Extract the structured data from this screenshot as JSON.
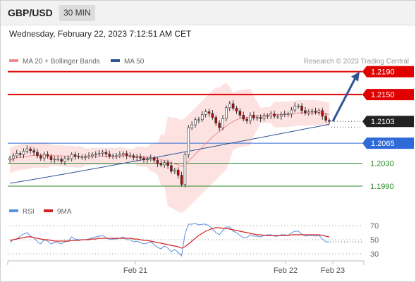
{
  "header": {
    "symbol": "GBP/USD",
    "timeframe": "30 MIN",
    "datetime": "Wednesday, February 22, 2023 7:12:51 AM CET"
  },
  "chart_data": [
    {
      "type": "candlestick",
      "legend": [
        {
          "label": "MA 20 + Bollinger Bands",
          "color": "#f08c8c"
        },
        {
          "label": "MA 50",
          "color": "#2f5597"
        }
      ],
      "legend_placement": "top-left",
      "credit": "Research © 2023 Trading Central",
      "x_ticks": [
        "Feb 21",
        "Feb 22",
        "Feb 23"
      ],
      "current_price": "1.2103",
      "levels": [
        {
          "label": "1.2190",
          "value": 1.219,
          "kind": "resistance",
          "color": "#e00000"
        },
        {
          "label": "1.2150",
          "value": 1.215,
          "kind": "resistance",
          "color": "#e00000"
        },
        {
          "label": "1.2065",
          "value": 1.2065,
          "kind": "pivot",
          "color": "#2f6bd8"
        },
        {
          "label": "1.2030",
          "value": 1.203,
          "kind": "support",
          "color": "#2a8a2a"
        },
        {
          "label": "1.1990",
          "value": 1.199,
          "kind": "support",
          "color": "#2a8a2a"
        }
      ],
      "colors": {
        "candle_up": "#ffffff",
        "candle_down": "#c00000",
        "bollinger_band": "#fde2e2",
        "ma20": "#f08c8c",
        "ma50": "#2f5597",
        "arrow": "#2f5597"
      },
      "price_range": [
        1.1985,
        1.2192
      ],
      "close": [
        1.2039,
        1.2043,
        1.2047,
        1.2045,
        1.2051,
        1.2055,
        1.2052,
        1.2049,
        1.2043,
        1.2039,
        1.2045,
        1.2042,
        1.2036,
        1.2037,
        1.2037,
        1.2033,
        1.2038,
        1.2038,
        1.2045,
        1.2042,
        1.2041,
        1.2041,
        1.2041,
        1.2043,
        1.2045,
        1.2046,
        1.2047,
        1.2049,
        1.2046,
        1.2042,
        1.2043,
        1.2043,
        1.2045,
        1.2047,
        1.2043,
        1.2043,
        1.204,
        1.2041,
        1.2039,
        1.2036,
        1.2037,
        1.2039,
        1.2035,
        1.2029,
        1.2027,
        1.2031,
        1.2026,
        1.2016,
        1.2018,
        1.2009,
        1.1993,
        1.2045,
        1.2092,
        1.2097,
        1.2106,
        1.2106,
        1.2115,
        1.212,
        1.2117,
        1.211,
        1.21,
        1.2092,
        1.2108,
        1.2127,
        1.2134,
        1.2126,
        1.2121,
        1.2114,
        1.2107,
        1.2104,
        1.2114,
        1.2109,
        1.211,
        1.2108,
        1.2112,
        1.2113,
        1.2116,
        1.2112,
        1.2112,
        1.2115,
        1.2116,
        1.2116,
        1.2123,
        1.213,
        1.213,
        1.2122,
        1.2118,
        1.212,
        1.2121,
        1.2119,
        1.2122,
        1.2112,
        1.2105,
        1.2103
      ],
      "ma20": [
        1.2035,
        1.2037,
        1.2039,
        1.204,
        1.2041,
        1.2042,
        1.2043,
        1.2044,
        1.2044,
        1.2044,
        1.2044,
        1.2044,
        1.2044,
        1.2043,
        1.2043,
        1.2043,
        1.2042,
        1.2042,
        1.2042,
        1.2041,
        1.2041,
        1.2041,
        1.2041,
        1.2041,
        1.2042,
        1.2042,
        1.2042,
        1.2042,
        1.2042,
        1.2042,
        1.2042,
        1.2042,
        1.2043,
        1.2043,
        1.2043,
        1.2043,
        1.2043,
        1.2042,
        1.2042,
        1.2041,
        1.204,
        1.204,
        1.2039,
        1.2038,
        1.2036,
        1.2035,
        1.2033,
        1.2031,
        1.2029,
        1.2027,
        1.2024,
        1.2028,
        1.2034,
        1.204,
        1.2046,
        1.2052,
        1.2058,
        1.2064,
        1.207,
        1.2076,
        1.2081,
        1.2085,
        1.209,
        1.2095,
        1.2099,
        1.2103,
        1.2106,
        1.2108,
        1.2109,
        1.211,
        1.2111,
        1.2112,
        1.2113,
        1.2113,
        1.2114,
        1.2114,
        1.2115,
        1.2115,
        1.2115,
        1.2115,
        1.2115,
        1.2116,
        1.2116,
        1.2117,
        1.2118,
        1.2118,
        1.2118,
        1.2118,
        1.2118,
        1.2118,
        1.2118,
        1.2117,
        1.2116,
        1.2115
      ],
      "ma50_start": 1.1995,
      "ma50_end": 1.2098,
      "projection": {
        "from": 1.2103,
        "to": 1.219
      }
    },
    {
      "type": "line",
      "legend": [
        {
          "label": "RSI",
          "color": "#5b8fe0"
        },
        {
          "label": "9MA",
          "color": "#d42020"
        }
      ],
      "y_ticks": [
        "70",
        "50",
        "30"
      ],
      "y_range": [
        22,
        78
      ],
      "rsi": [
        46,
        50,
        51,
        55,
        58,
        60,
        55,
        53,
        47,
        44,
        50,
        48,
        44,
        46,
        46,
        44,
        47,
        48,
        54,
        51,
        50,
        50,
        50,
        51,
        53,
        54,
        55,
        56,
        53,
        50,
        51,
        51,
        52,
        54,
        50,
        50,
        47,
        48,
        46,
        44,
        45,
        47,
        43,
        39,
        37,
        41,
        38,
        33,
        36,
        32,
        27,
        58,
        72,
        72,
        73,
        71,
        72,
        72,
        70,
        65,
        60,
        57,
        63,
        68,
        68,
        62,
        60,
        56,
        53,
        53,
        57,
        55,
        55,
        54,
        56,
        57,
        57,
        55,
        55,
        57,
        57,
        56,
        60,
        62,
        62,
        58,
        55,
        56,
        56,
        55,
        56,
        51,
        47,
        47
      ],
      "ma9": [
        49,
        50,
        51,
        52,
        53,
        54,
        54,
        53,
        52,
        51,
        50,
        50,
        49,
        48,
        48,
        48,
        48,
        48,
        49,
        49,
        49,
        50,
        50,
        50,
        51,
        51,
        52,
        52,
        52,
        52,
        52,
        52,
        52,
        52,
        52,
        52,
        51,
        51,
        50,
        49,
        49,
        48,
        47,
        46,
        45,
        44,
        43,
        42,
        41,
        40,
        38,
        40,
        44,
        48,
        52,
        56,
        59,
        62,
        64,
        66,
        67,
        67,
        66,
        66,
        65,
        64,
        63,
        62,
        61,
        60,
        59,
        58,
        57,
        57,
        56,
        56,
        56,
        56,
        56,
        56,
        56,
        56,
        57,
        57,
        57,
        57,
        57,
        57,
        57,
        57,
        57,
        56,
        55,
        54
      ]
    }
  ]
}
